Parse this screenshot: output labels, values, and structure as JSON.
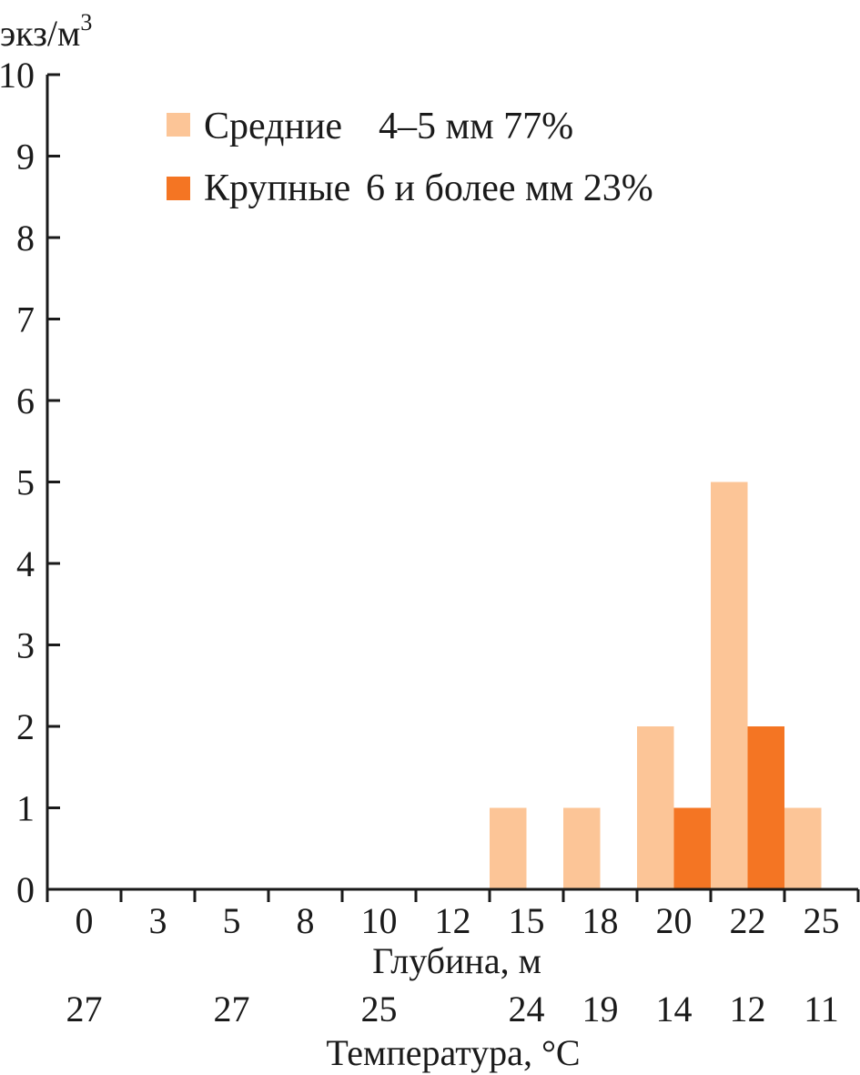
{
  "chart_data": {
    "type": "bar",
    "ylabel": "экз/м",
    "ylabel_sup": "3",
    "ylim": [
      0,
      10
    ],
    "yticks": [
      "0",
      "1",
      "2",
      "3",
      "4",
      "5",
      "6",
      "7",
      "8",
      "9",
      "10"
    ],
    "categories": [
      "0",
      "3",
      "5",
      "8",
      "10",
      "12",
      "15",
      "18",
      "20",
      "22",
      "25"
    ],
    "xlabel": "Глубина, м",
    "temperature_labels": [
      "27",
      "",
      "27",
      "",
      "25",
      "",
      "24",
      "19",
      "14",
      "12",
      "11"
    ],
    "temperature_title": "Температура, °С",
    "series": [
      {
        "name": "Средние",
        "legend_detail": "4–5 мм 77%",
        "color": "#fcc597",
        "values": [
          0,
          0,
          0,
          0,
          0,
          0,
          1,
          1,
          2,
          5,
          1
        ]
      },
      {
        "name": "Крупные",
        "legend_detail": "6 и более мм 23%",
        "color": "#f47523",
        "values": [
          0,
          0,
          0,
          0,
          0,
          0,
          0,
          0,
          1,
          2,
          0
        ]
      }
    ],
    "legend_position": "top-center",
    "grid": false
  }
}
